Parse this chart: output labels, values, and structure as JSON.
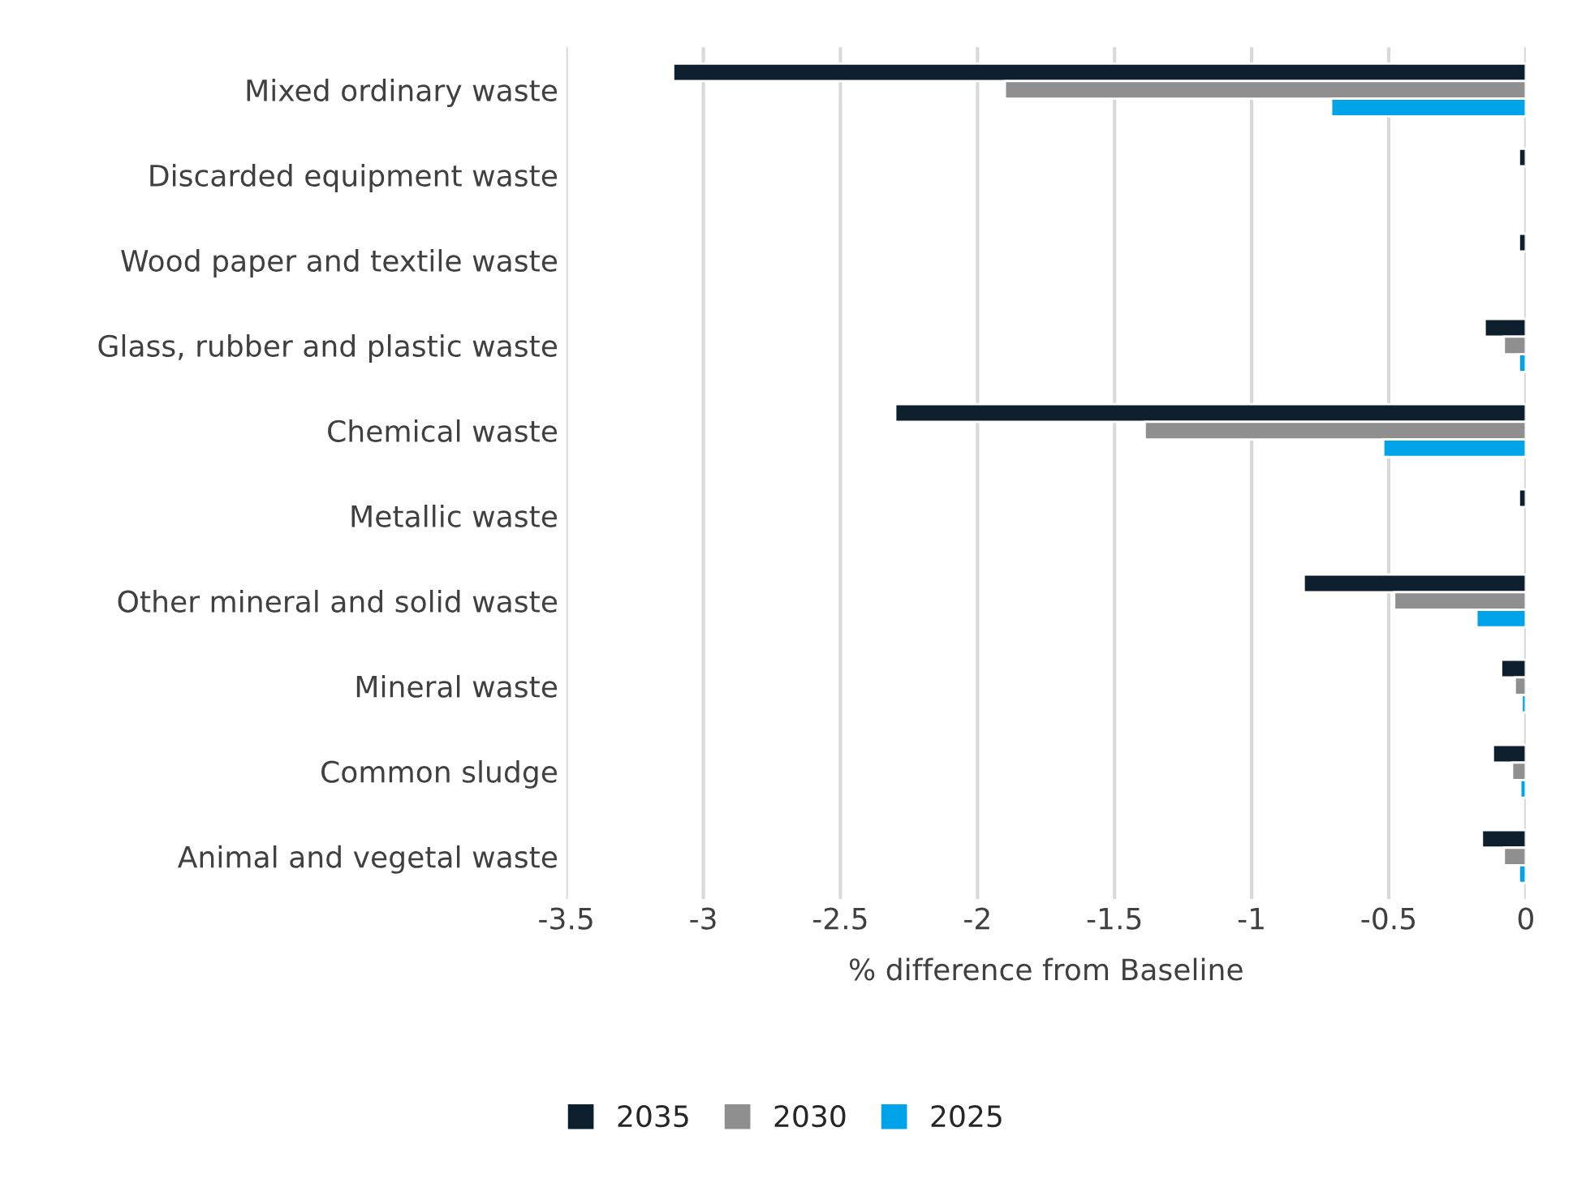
{
  "chart_data": {
    "type": "bar",
    "orientation": "horizontal",
    "xlabel": "% difference from Baseline",
    "categories": [
      "Mixed ordinary waste",
      "Discarded equipment waste",
      "Wood paper and textile waste",
      "Glass, rubber and plastic waste",
      "Chemical waste",
      "Metallic waste",
      "Other mineral and solid waste",
      "Mineral waste",
      "Common sludge",
      "Animal and vegetal waste"
    ],
    "series": [
      {
        "name": "2035",
        "color": "#0d1f2d",
        "values": [
          -3.11,
          -0.025,
          -0.025,
          -0.15,
          -2.3,
          -0.025,
          -0.81,
          -0.09,
          -0.12,
          -0.16
        ]
      },
      {
        "name": "2030",
        "color": "#8f8f8f",
        "values": [
          -1.9,
          null,
          null,
          -0.08,
          -1.39,
          null,
          -0.48,
          -0.04,
          -0.05,
          -0.08
        ]
      },
      {
        "name": "2025",
        "color": "#00a2e8",
        "values": [
          -0.71,
          null,
          null,
          -0.025,
          -0.52,
          null,
          -0.18,
          -0.015,
          -0.02,
          -0.025
        ]
      }
    ],
    "xlim": [
      -3.5,
      0
    ],
    "xticks": [
      -3.5,
      -3,
      -2.5,
      -2,
      -1.5,
      -1,
      -0.5,
      0
    ],
    "grid": "x",
    "legend": "bottom"
  }
}
